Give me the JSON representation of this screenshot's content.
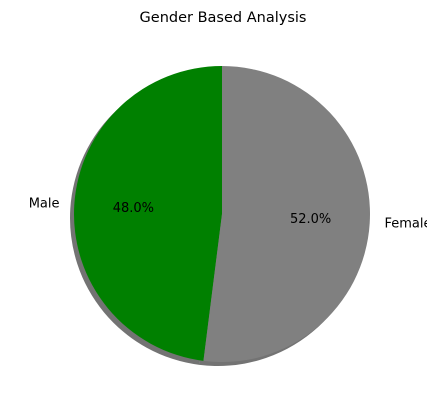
{
  "chart_data": {
    "type": "pie",
    "title": "Gender Based Analysis",
    "categories": [
      "Male",
      "Female"
    ],
    "values": [
      48.0,
      52.0
    ],
    "percent_labels": [
      "48.0%",
      "52.0%"
    ],
    "colors": [
      "#008000",
      "#808080"
    ],
    "start_angle_deg": 90,
    "direction": "counterclockwise",
    "shadow": true,
    "legend": "none"
  }
}
